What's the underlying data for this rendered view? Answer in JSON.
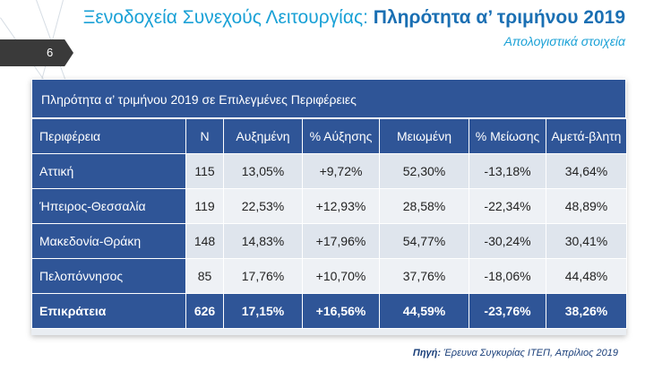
{
  "header": {
    "title_main": "Ξενοδοχεία Συνεχούς Λειτουργίας:",
    "title_bold": "Πληρότητα α’ τριμήνου 2019",
    "subtitle": "Απολογιστικά στοιχεία"
  },
  "page_number": "6",
  "table": {
    "title": "Πληρότητα α’ τριμήνου 2019 σε Επιλεγμένες Περιφέρειες",
    "headers": [
      "Περιφέρεια",
      "Ν",
      "Αυξημένη",
      "% Αύξησης",
      "Μειωμένη",
      "% Μείωσης",
      "Αμετά-βλητη"
    ],
    "rows": [
      {
        "region": "Αττική",
        "n": "115",
        "increased": "13,05%",
        "pct_increase": "+9,72%",
        "decreased": "52,30%",
        "pct_decrease": "-13,18%",
        "unchanged": "34,64%"
      },
      {
        "region": "Ήπειρος-Θεσσαλία",
        "n": "119",
        "increased": "22,53%",
        "pct_increase": "+12,93%",
        "decreased": "28,58%",
        "pct_decrease": "-22,34%",
        "unchanged": "48,89%"
      },
      {
        "region": "Μακεδονία-Θράκη",
        "n": "148",
        "increased": "14,83%",
        "pct_increase": "+17,96%",
        "decreased": "54,77%",
        "pct_decrease": "-30,24%",
        "unchanged": "30,41%"
      },
      {
        "region": "Πελοπόννησος",
        "n": "85",
        "increased": "17,76%",
        "pct_increase": "+10,70%",
        "decreased": "37,76%",
        "pct_decrease": "-18,06%",
        "unchanged": "44,48%"
      }
    ],
    "total": {
      "region": "Επικράτεια",
      "n": "626",
      "increased": "17,15%",
      "pct_increase": "+16,56%",
      "decreased": "44,59%",
      "pct_decrease": "-23,76%",
      "unchanged": "38,26%"
    }
  },
  "source": {
    "label": "Πηγή:",
    "text": "Έρευνα Συγκυρίας ΙΤΕΠ, Απρίλιος 2019"
  }
}
